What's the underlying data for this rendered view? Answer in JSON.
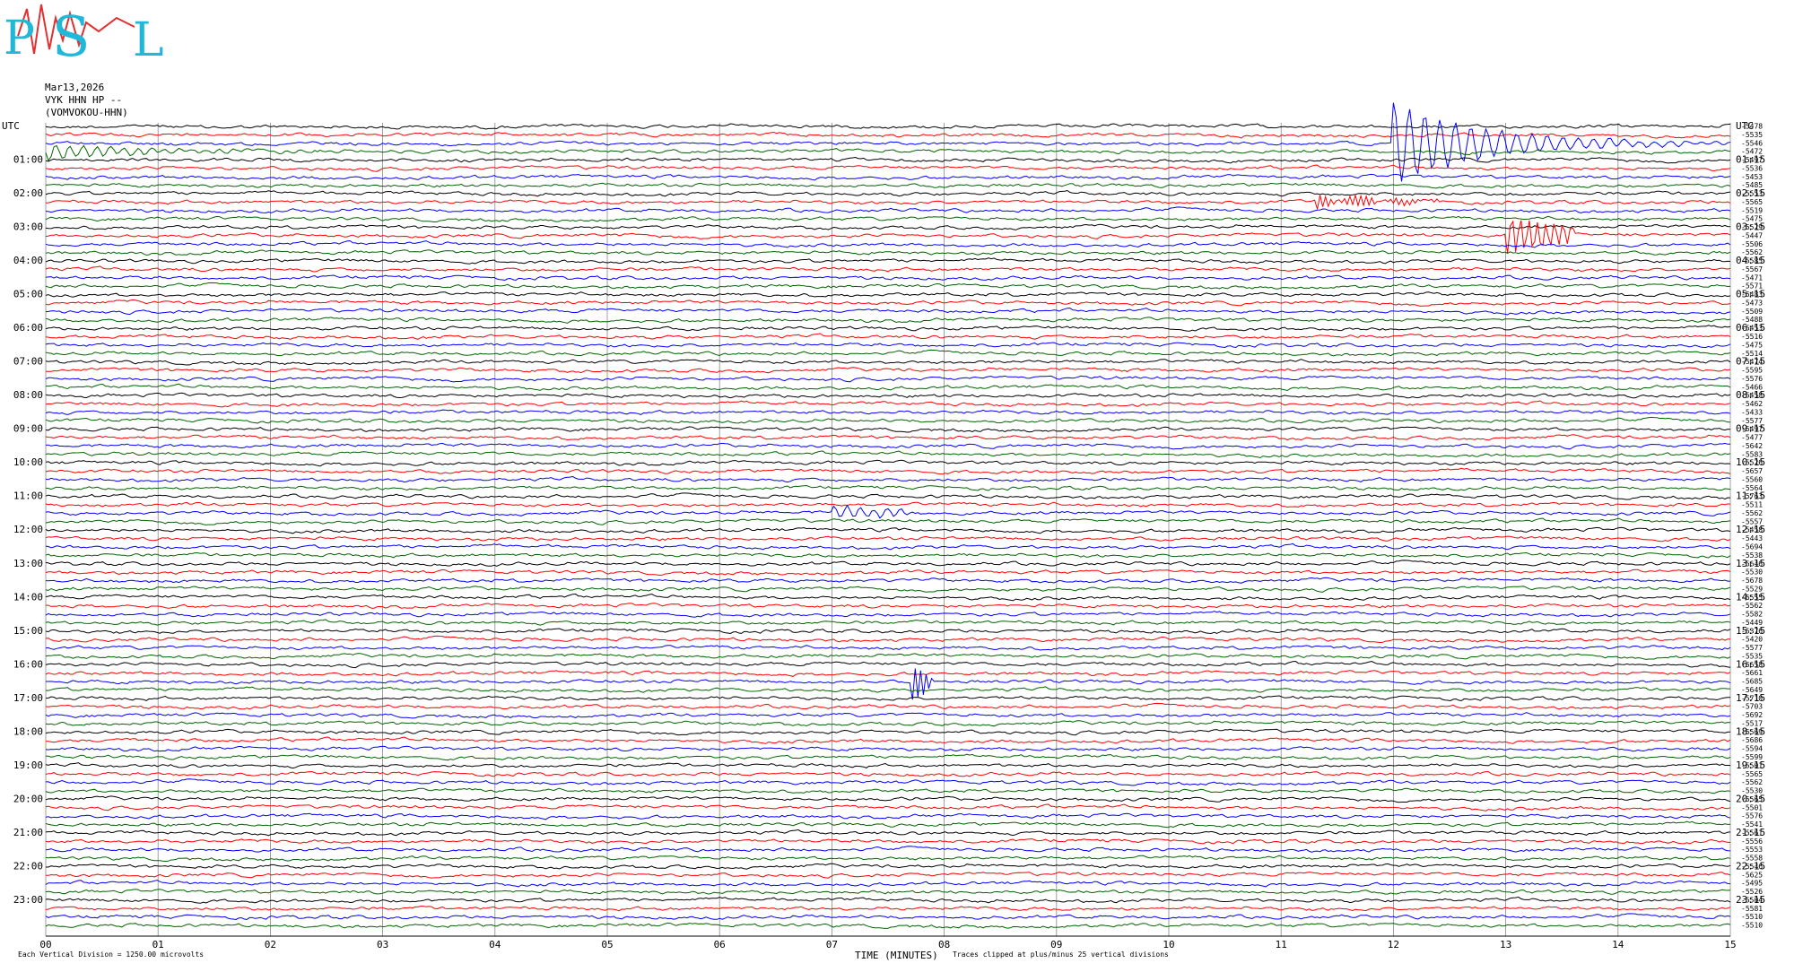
{
  "logo": {
    "letters": [
      "P",
      "S",
      "L"
    ]
  },
  "header": {
    "date": "Mar13,2026",
    "channel": "VYK HHN HP --",
    "station": "(VOMVOKOU-HHN)"
  },
  "chart_data": {
    "type": "helicorder",
    "xlabel": "TIME (MINUTES)",
    "scale_note": "Each Vertical Division = 1250.00 microvolts",
    "clip_note": "Traces clipped at plus/minus 25 vertical divisions",
    "xlim": [
      0,
      15
    ],
    "xticks": [
      {
        "value": 0,
        "label": "00"
      },
      {
        "value": 1,
        "label": "01"
      },
      {
        "value": 2,
        "label": "02"
      },
      {
        "value": 3,
        "label": "03"
      },
      {
        "value": 4,
        "label": "04"
      },
      {
        "value": 5,
        "label": "05"
      },
      {
        "value": 6,
        "label": "06"
      },
      {
        "value": 7,
        "label": "07"
      },
      {
        "value": 8,
        "label": "08"
      },
      {
        "value": 9,
        "label": "09"
      },
      10,
      11,
      12,
      13,
      14,
      15
    ],
    "grid": true,
    "colors": [
      "#000000",
      "#ff0000",
      "#0000ff",
      "#006400"
    ],
    "left_labels": [
      "UTC",
      "01:00",
      "02:00",
      "03:00",
      "04:00",
      "05:00",
      "06:00",
      "07:00",
      "08:00",
      "09:00",
      "10:00",
      "11:00",
      "12:00",
      "13:00",
      "14:00",
      "15:00",
      "16:00",
      "17:00",
      "18:00",
      "19:00",
      "20:00",
      "21:00",
      "22:00",
      "23:00"
    ],
    "right_labels": [
      "UTC",
      "01:15",
      "02:15",
      "03:15",
      "04:15",
      "05:15",
      "06:15",
      "07:15",
      "08:15",
      "09:15",
      "10:15",
      "11:15",
      "12:15",
      "13:15",
      "14:15",
      "15:15",
      "16:15",
      "17:15",
      "18:15",
      "19:15",
      "20:15",
      "21:15",
      "22:15",
      "23:15"
    ],
    "offsets": [
      -5478,
      -5535,
      -5546,
      -5472,
      -5497,
      -5536,
      -5453,
      -5485,
      -5553,
      -5565,
      -5519,
      -5475,
      -5529,
      -5447,
      -5506,
      -5562,
      -5585,
      -5567,
      -5471,
      -5571,
      -5483,
      -5473,
      -5509,
      -5488,
      -5453,
      -5516,
      -5475,
      -5514,
      -5474,
      -5595,
      -5576,
      -5466,
      -5458,
      -5462,
      -5433,
      -5577,
      -5497,
      -5477,
      -5642,
      -5583,
      -5526,
      -5657,
      -5560,
      -5564,
      -5763,
      -5511,
      -5562,
      -5557,
      -5458,
      -5443,
      -5694,
      -5538,
      -5646,
      -5530,
      -5678,
      -5529,
      -5555,
      -5562,
      -5582,
      -5449,
      -5376,
      -5420,
      -5577,
      -5535,
      -5658,
      -5661,
      -5685,
      -5649,
      -5710,
      -5703,
      -5692,
      -5517,
      -5569,
      -5686,
      -5594,
      -5599,
      -5501,
      -5565,
      -5562,
      -5530,
      -5565,
      -5501,
      -5576,
      -5541,
      -5561,
      -5556,
      -5553,
      -5558,
      -5546,
      -5625,
      -5495,
      -5526,
      -5504,
      -5581,
      -5510,
      -5510
    ]
  }
}
